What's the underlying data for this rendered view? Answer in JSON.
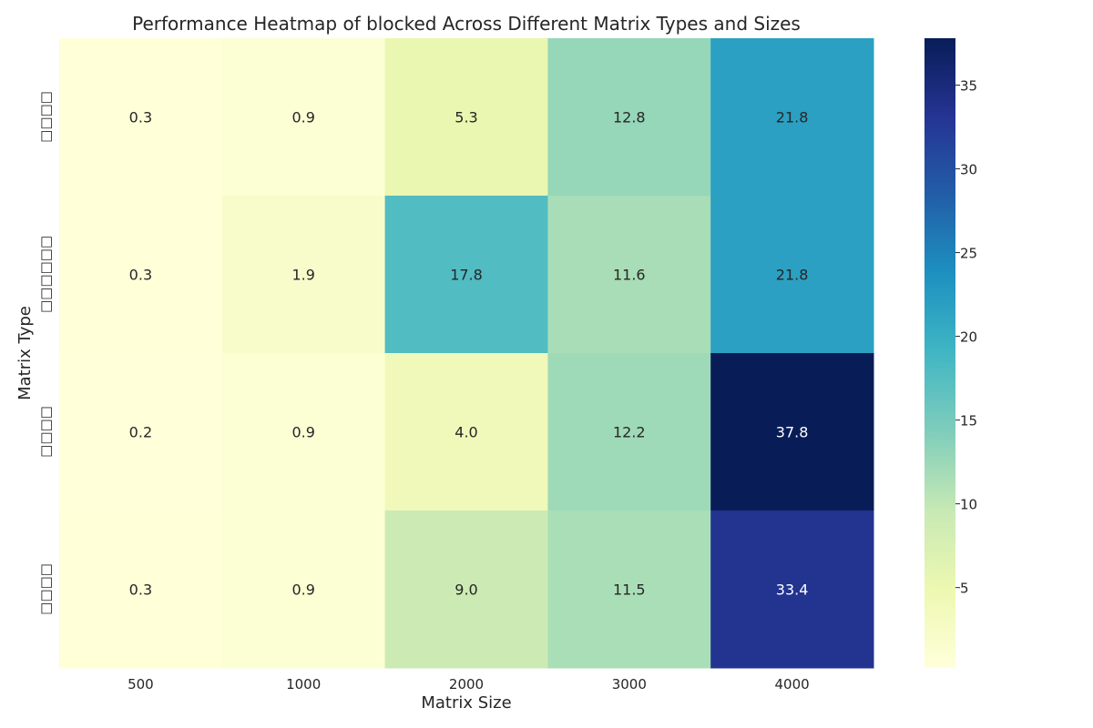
{
  "chart_data": {
    "type": "heatmap",
    "title": "Performance Heatmap of blocked Across Different Matrix Types and Sizes",
    "xlabel": "Matrix Size",
    "ylabel": "Matrix Type",
    "x": [
      "500",
      "1000",
      "2000",
      "3000",
      "4000"
    ],
    "y": [
      "□□□□",
      "□□□□□□",
      "□□□□",
      "□□□□"
    ],
    "values": [
      [
        0.3,
        0.9,
        5.3,
        12.8,
        21.8
      ],
      [
        0.3,
        1.9,
        17.8,
        11.6,
        21.8
      ],
      [
        0.2,
        0.9,
        4.0,
        12.2,
        37.8
      ],
      [
        0.3,
        0.9,
        9.0,
        11.5,
        33.4
      ]
    ],
    "value_labels": [
      [
        "0.3",
        "0.9",
        "5.3",
        "12.8",
        "21.8"
      ],
      [
        "0.3",
        "1.9",
        "17.8",
        "11.6",
        "21.8"
      ],
      [
        "0.2",
        "0.9",
        "4.0",
        "12.2",
        "37.8"
      ],
      [
        "0.3",
        "0.9",
        "9.0",
        "11.5",
        "33.4"
      ]
    ],
    "colormap": "YlGnBu",
    "color_range": [
      0.2,
      37.8
    ],
    "colorbar_ticks": [
      5,
      10,
      15,
      20,
      25,
      30,
      35
    ],
    "colorbar_tick_labels": [
      "5",
      "10",
      "15",
      "20",
      "25",
      "30",
      "35"
    ],
    "colorbar_placement": "right",
    "grid": false
  }
}
